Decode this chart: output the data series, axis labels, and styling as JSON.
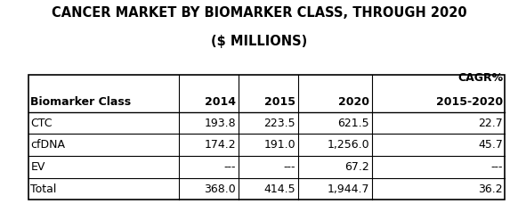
{
  "title_line1": "CANCER MARKET BY BIOMARKER CLASS, THROUGH 2020",
  "title_line2": "($ MILLIONS)",
  "col_headers_row1": [
    "",
    "",
    "",
    "",
    "CAGR%"
  ],
  "col_headers_row2": [
    "Biomarker Class",
    "2014",
    "2015",
    "2020",
    "2015-2020"
  ],
  "rows": [
    [
      "CTC",
      "193.8",
      "223.5",
      "621.5",
      "22.7"
    ],
    [
      "cfDNA",
      "174.2",
      "191.0",
      "1,256.0",
      "45.7"
    ],
    [
      "EV",
      "---",
      "---",
      "67.2",
      "---"
    ],
    [
      "Total",
      "368.0",
      "414.5",
      "1,944.7",
      "36.2"
    ]
  ],
  "bg_color": "#ffffff",
  "border_color": "#000000",
  "title_fontsize": 10.5,
  "header_fontsize": 9,
  "cell_fontsize": 9
}
